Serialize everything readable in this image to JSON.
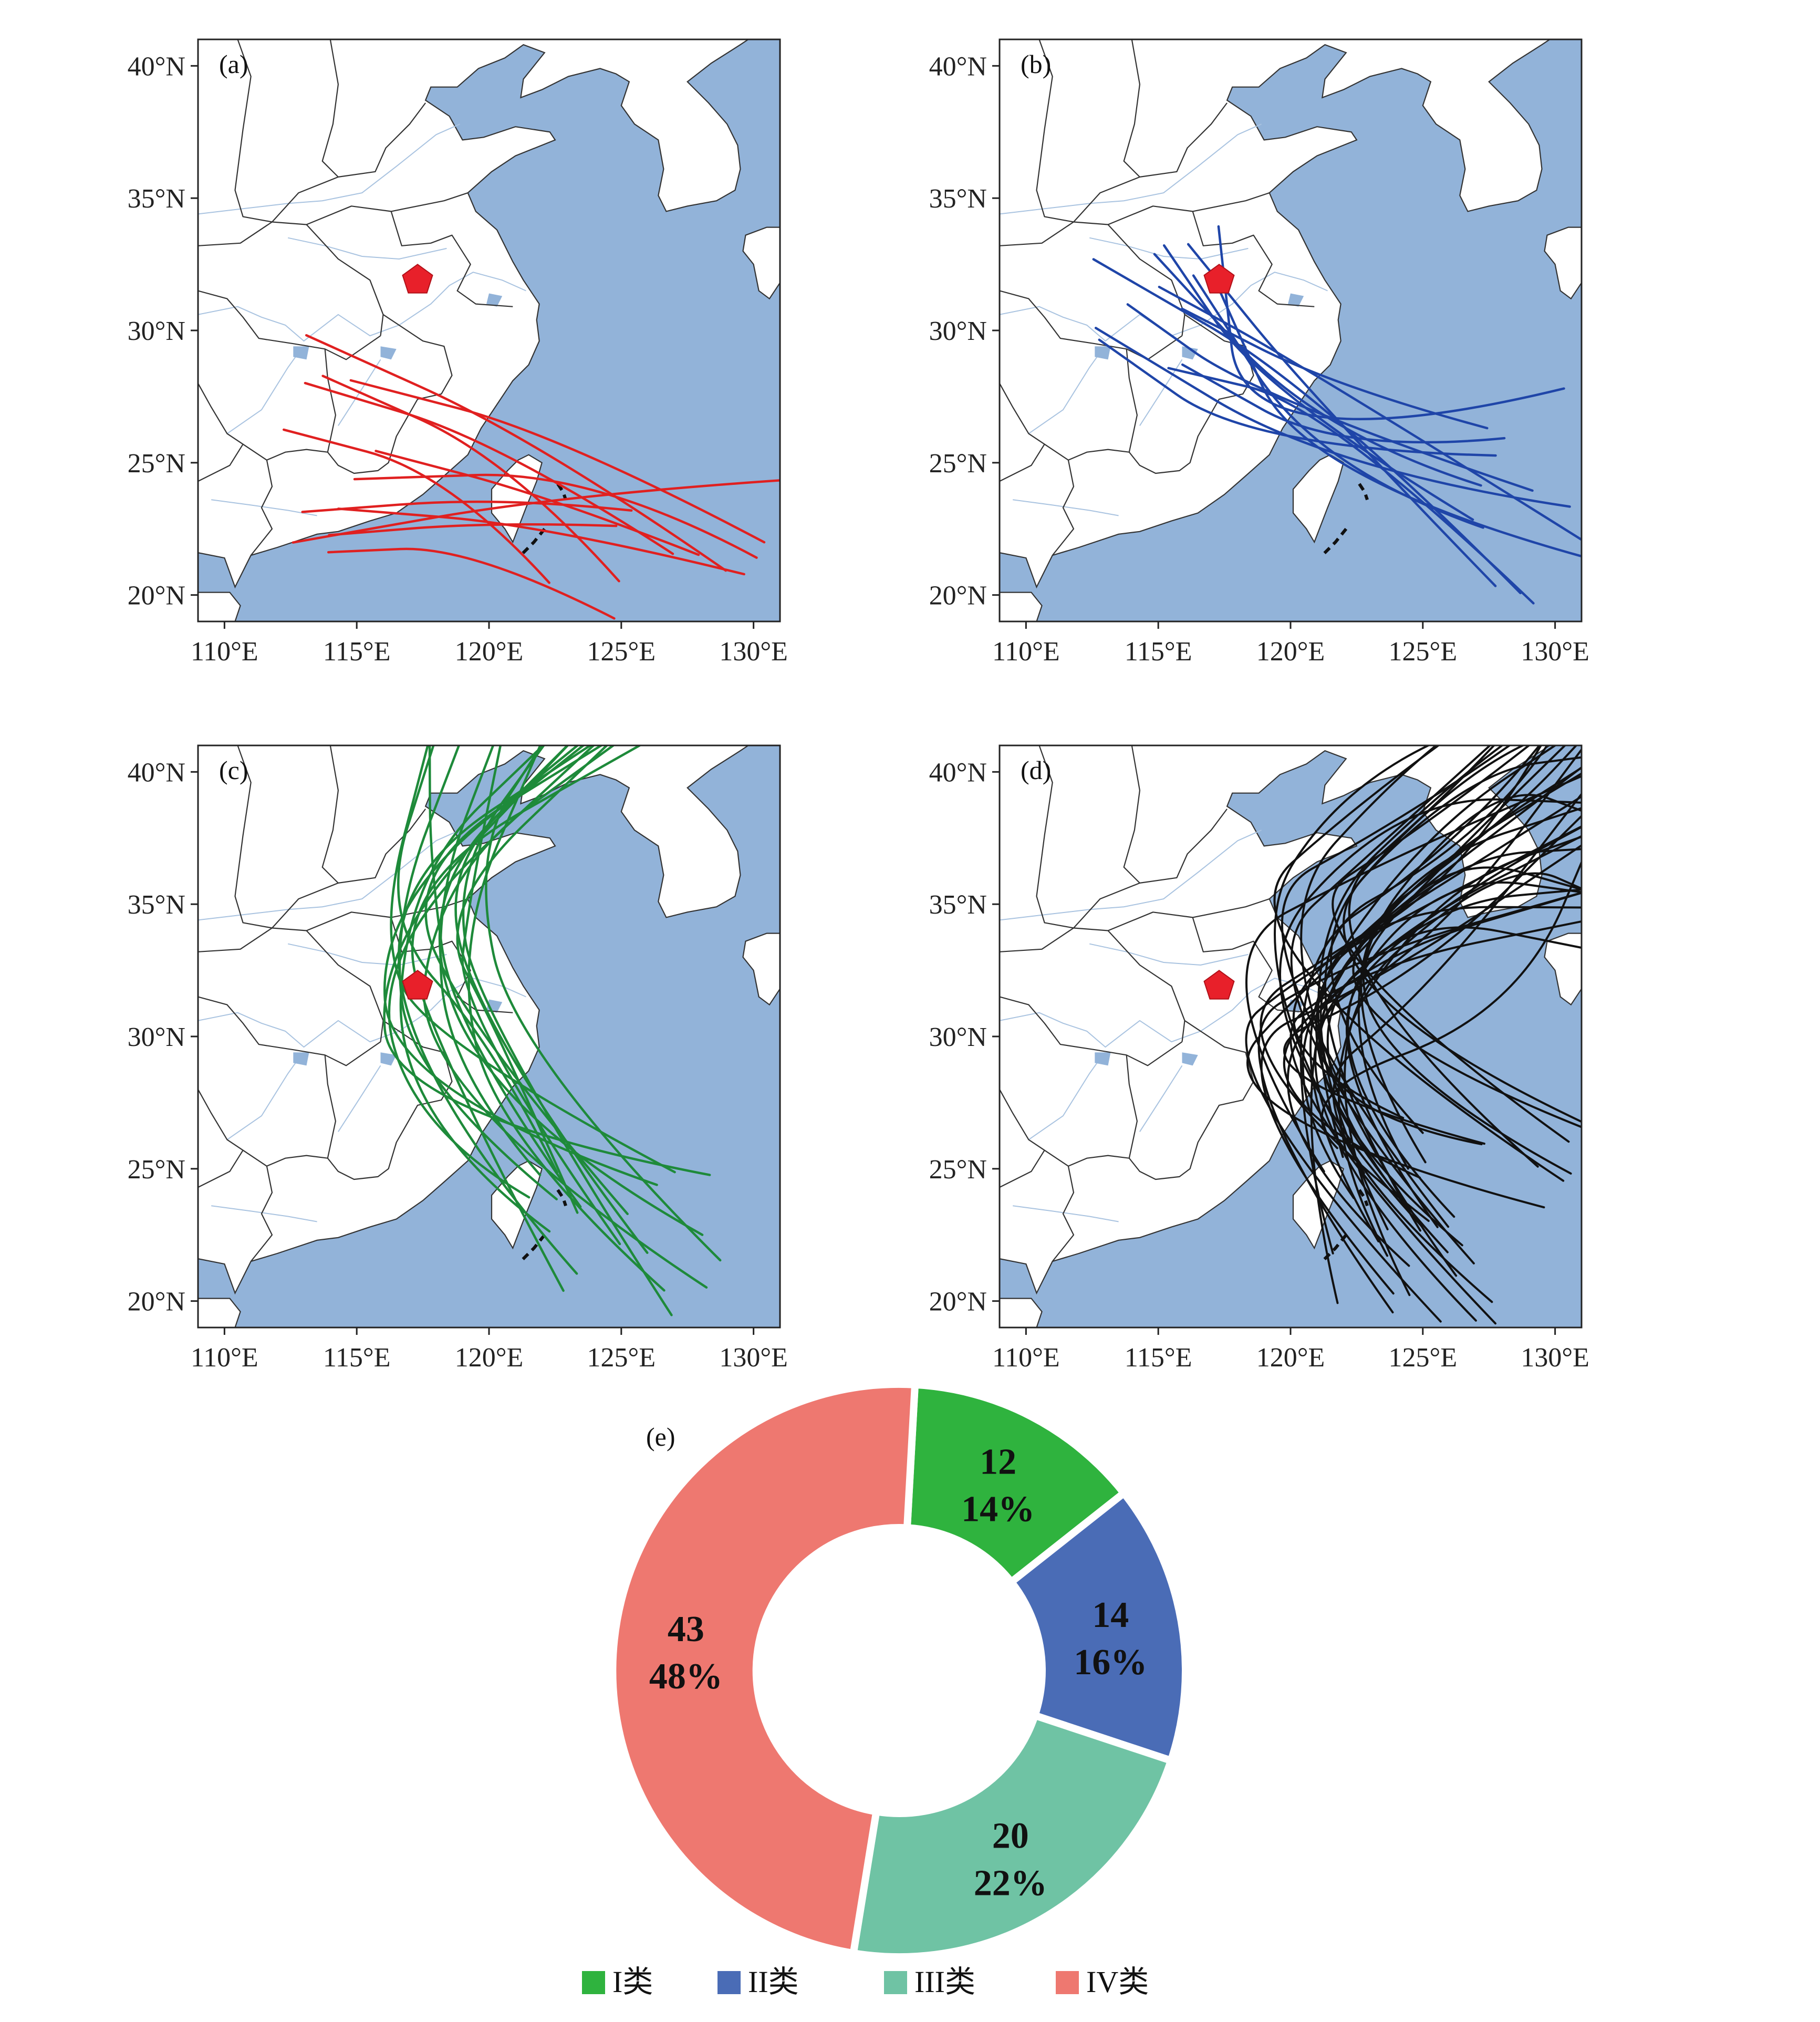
{
  "map_panels": [
    {
      "letter": "(a)",
      "track_color": "#e02020",
      "class_name": "I类",
      "track_count": 12
    },
    {
      "letter": "(b)",
      "track_color": "#1f45a8",
      "class_name": "II类",
      "track_count": 14
    },
    {
      "letter": "(c)",
      "track_color": "#1e8a3a",
      "class_name": "III类",
      "track_count": 20
    },
    {
      "letter": "(d)",
      "track_color": "#111111",
      "class_name": "IV类",
      "track_count": 43
    }
  ],
  "map_axes": {
    "lon_range": [
      109,
      131
    ],
    "lat_range": [
      19,
      41
    ],
    "x_ticks": [
      "110°E",
      "115°E",
      "120°E",
      "125°E",
      "130°E"
    ],
    "y_ticks": [
      "20°N",
      "25°N",
      "30°N",
      "35°N",
      "40°N"
    ],
    "ocean_color": "#92b3d9",
    "land_color": "#ffffff",
    "marker_color": "#e8202a",
    "marker_lon": 117.3,
    "marker_lat": 31.9
  },
  "chart_data": {
    "type": "pie",
    "letter": "(e)",
    "donut": true,
    "categories": [
      "I类",
      "II类",
      "III类",
      "IV类"
    ],
    "values": [
      12,
      14,
      20,
      43
    ],
    "percent_labels": [
      "14%",
      "16%",
      "22%",
      "48%"
    ],
    "colors": [
      "#2fb33e",
      "#4a6cb6",
      "#6fc3a4",
      "#ee7870"
    ],
    "legend_position": "bottom"
  }
}
